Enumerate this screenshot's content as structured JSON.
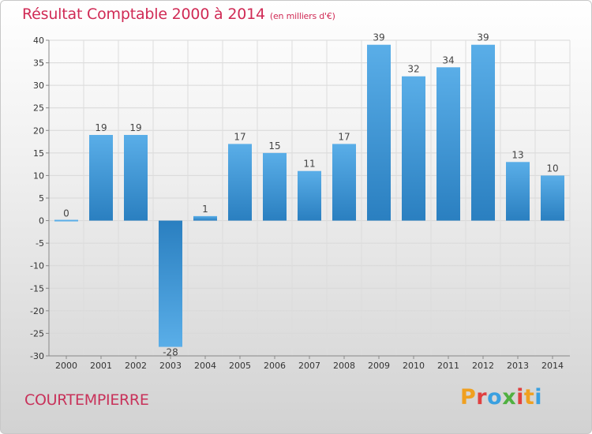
{
  "header": {
    "title": "Résultat Comptable 2000 à 2014",
    "subtitle": "(en milliers d'€)"
  },
  "footer": {
    "commune": "COURTEMPIERRE",
    "logo_text": "Proxiti"
  },
  "colors": {
    "title": "#d02a55",
    "bar_top": "#5aaee8",
    "bar_bottom": "#2a7fc0",
    "logo": [
      "#f0a020",
      "#e04040",
      "#3aa0e0",
      "#50b040",
      "#e04040",
      "#f0a020",
      "#3aa0e0"
    ]
  },
  "chart_data": {
    "type": "bar",
    "categories": [
      "2000",
      "2001",
      "2002",
      "2003",
      "2004",
      "2005",
      "2006",
      "2007",
      "2008",
      "2009",
      "2010",
      "2011",
      "2012",
      "2013",
      "2014"
    ],
    "values": [
      0,
      19,
      19,
      -28,
      1,
      17,
      15,
      11,
      17,
      39,
      32,
      34,
      39,
      13,
      10
    ],
    "ylim": [
      -30,
      40
    ],
    "yticks": [
      40,
      35,
      30,
      25,
      20,
      15,
      10,
      5,
      0,
      -5,
      -10,
      -15,
      -20,
      -25,
      -30
    ],
    "grid": true,
    "legend": "none"
  }
}
